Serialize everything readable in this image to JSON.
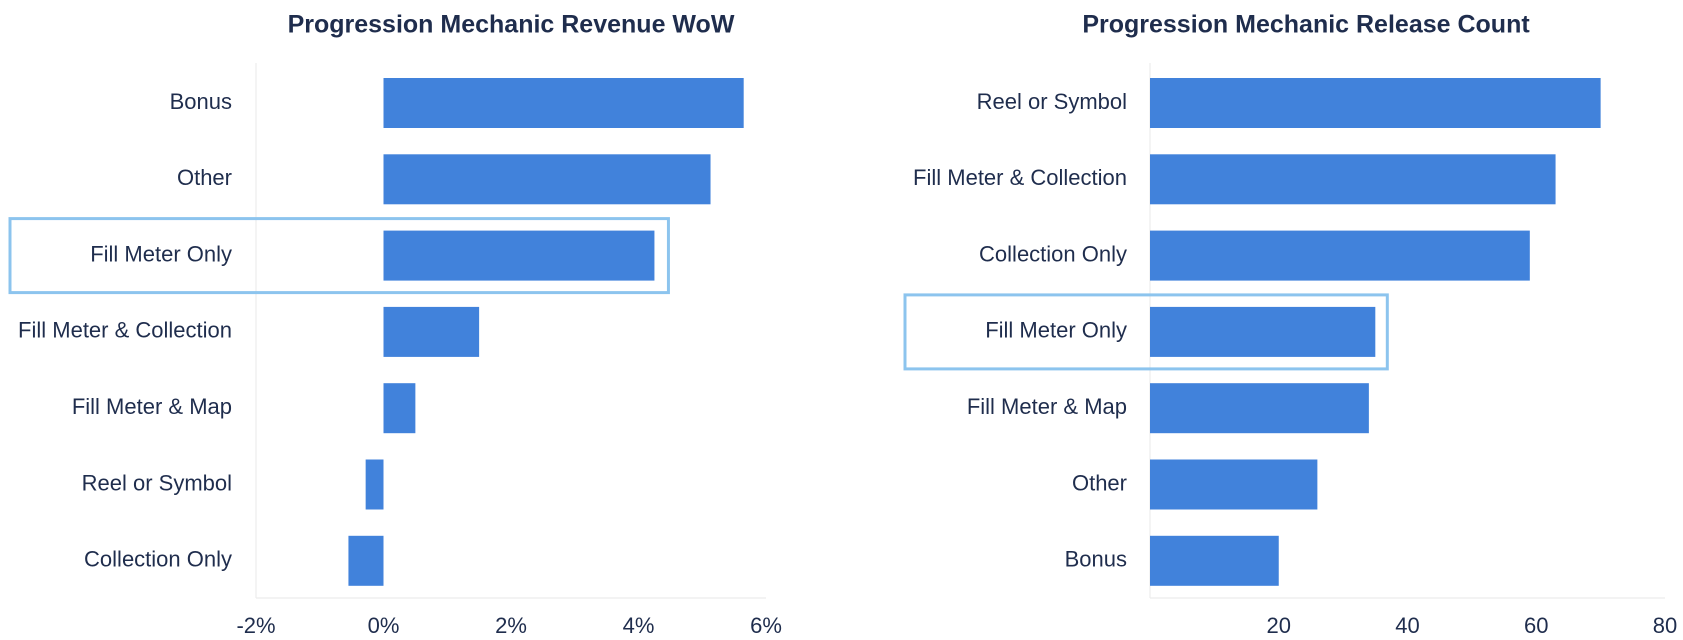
{
  "colors": {
    "bar": "#4182db",
    "highlight": "#8cc4ee",
    "grid": "#ececec",
    "text": "#1f2d4d"
  },
  "chart_data": [
    {
      "type": "bar",
      "orientation": "horizontal",
      "title": "Progression Mechanic Revenue WoW",
      "categories": [
        "Bonus",
        "Other",
        "Fill Meter Only",
        "Fill Meter & Collection",
        "Fill Meter & Map",
        "Reel or Symbol",
        "Collection Only"
      ],
      "values": [
        5.65,
        5.13,
        4.25,
        1.5,
        0.5,
        -0.28,
        -0.55
      ],
      "unit": "%",
      "xlim": [
        -2,
        6
      ],
      "xticks": [
        -2,
        0,
        2,
        4,
        6
      ],
      "xtick_labels": [
        "-2%",
        "0%",
        "2%",
        "4%",
        "6%"
      ],
      "highlighted_category": "Fill Meter Only",
      "grid": false
    },
    {
      "type": "bar",
      "orientation": "horizontal",
      "title": "Progression Mechanic Release Count",
      "categories": [
        "Reel or Symbol",
        "Fill Meter & Collection",
        "Collection Only",
        "Fill Meter Only",
        "Fill Meter & Map",
        "Other",
        "Bonus"
      ],
      "values": [
        70,
        63,
        59,
        35,
        34,
        26,
        20
      ],
      "xlim": [
        0,
        80
      ],
      "xticks": [
        20,
        40,
        60,
        80
      ],
      "xtick_labels": [
        "20",
        "40",
        "60",
        "80"
      ],
      "highlighted_category": "Fill Meter Only",
      "grid": false
    }
  ]
}
